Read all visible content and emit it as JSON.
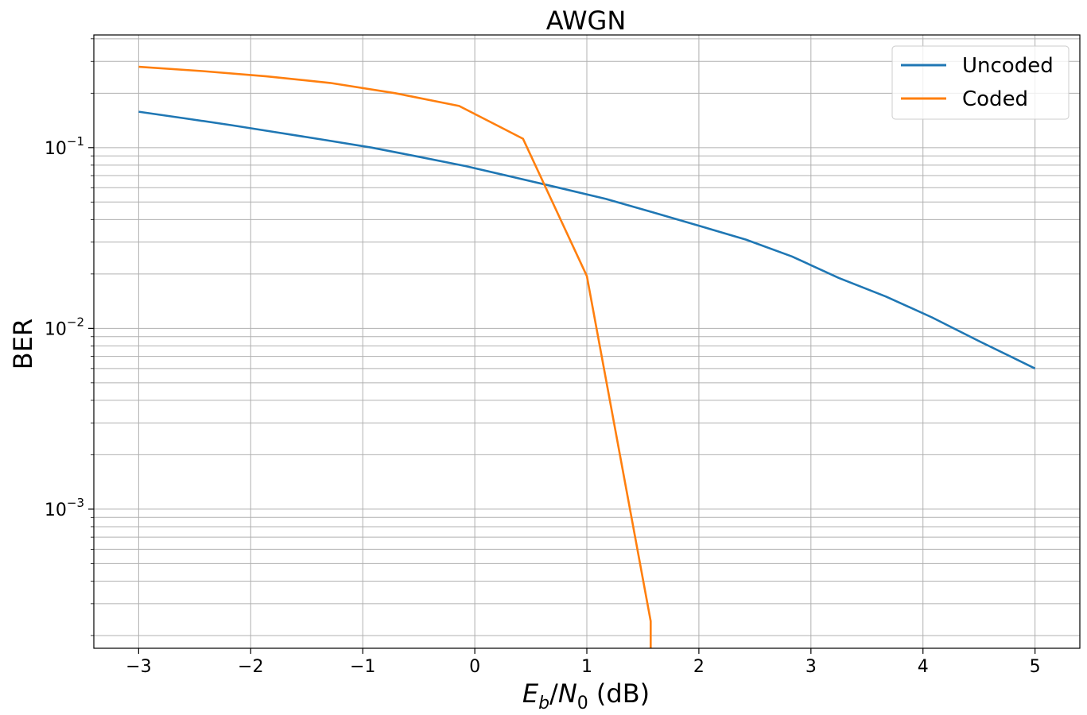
{
  "chart_data": {
    "type": "line",
    "title": "AWGN",
    "xlabel": {
      "E": "E",
      "b": "b",
      "slash": "/",
      "N": "N",
      "zero": "0",
      "unit": " (dB)"
    },
    "ylabel": "BER",
    "xlim": [
      -3.4,
      5.4
    ],
    "ylim": [
      0.00017,
      0.42
    ],
    "yscale": "log",
    "grid": true,
    "legend_position": "top-right",
    "x_ticks": [
      {
        "value": -3,
        "label": "−3"
      },
      {
        "value": -2,
        "label": "−2"
      },
      {
        "value": -1,
        "label": "−1"
      },
      {
        "value": 0,
        "label": "0"
      },
      {
        "value": 1,
        "label": "1"
      },
      {
        "value": 2,
        "label": "2"
      },
      {
        "value": 3,
        "label": "3"
      },
      {
        "value": 4,
        "label": "4"
      },
      {
        "value": 5,
        "label": "5"
      }
    ],
    "y_ticks": [
      {
        "value": 0.1,
        "base": "10",
        "exp": "−1"
      },
      {
        "value": 0.01,
        "base": "10",
        "exp": "−2"
      },
      {
        "value": 0.001,
        "base": "10",
        "exp": "−3"
      }
    ],
    "series": [
      {
        "name": "Uncoded",
        "color": "#1f77b4",
        "x": [
          -3,
          -2.58,
          -2.17,
          -1.75,
          -1.33,
          -0.92,
          -0.5,
          -0.08,
          0.33,
          0.75,
          1.17,
          1.58,
          2.0,
          2.42,
          2.83,
          3.25,
          3.67,
          4.08,
          4.5,
          5.0
        ],
        "y": [
          0.158,
          0.145,
          0.133,
          0.121,
          0.11,
          0.1,
          0.089,
          0.079,
          0.069,
          0.06,
          0.052,
          0.044,
          0.037,
          0.031,
          0.025,
          0.019,
          0.015,
          0.0115,
          0.0085,
          0.006
        ]
      },
      {
        "name": "Coded",
        "color": "#ff7f0e",
        "x": [
          -3,
          -2.43,
          -1.86,
          -1.29,
          -0.71,
          -0.14,
          0.43,
          1.0,
          1.57,
          1.57
        ],
        "y": [
          0.28,
          0.265,
          0.248,
          0.228,
          0.2,
          0.17,
          0.112,
          0.0195,
          0.00024,
          0.00017
        ]
      }
    ]
  }
}
